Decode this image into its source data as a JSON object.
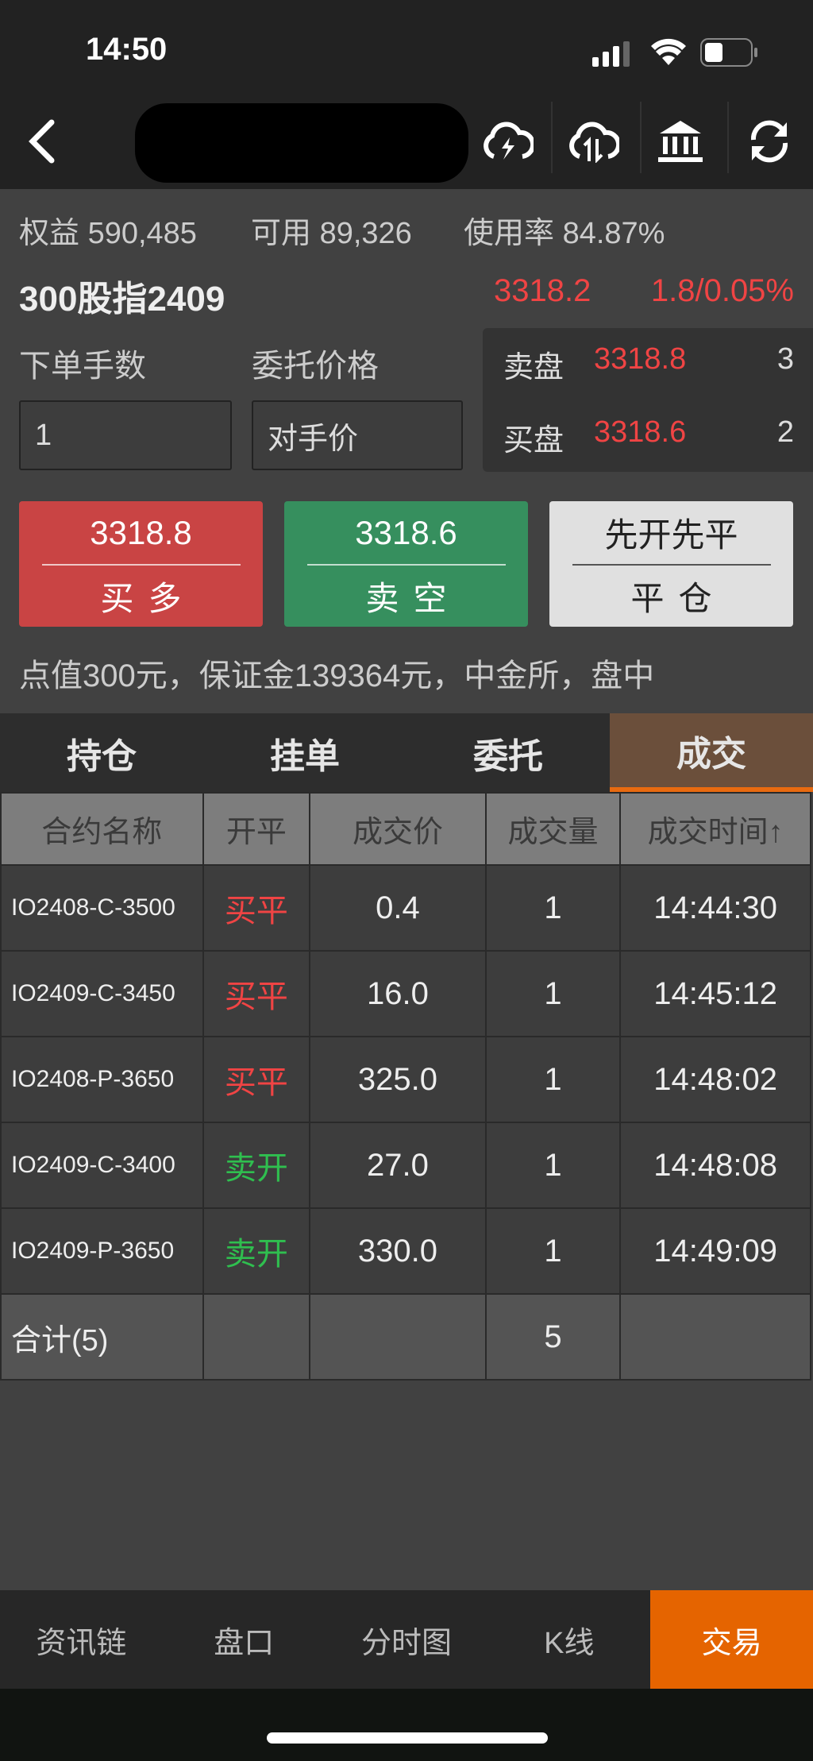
{
  "status": {
    "time": "14:50",
    "icons": [
      "signal-icon",
      "wifi-icon",
      "battery-icon"
    ]
  },
  "nav": {
    "icons": [
      "back-icon",
      "cloud-lightning-icon",
      "cloud-sync-icon",
      "bank-icon",
      "refresh-icon"
    ]
  },
  "account": {
    "equity_label": "权益",
    "equity": "590,485",
    "available_label": "可用",
    "available": "89,326",
    "usage_label": "使用率",
    "usage": "84.87%"
  },
  "contract": {
    "name": "300股指2409",
    "last": "3318.2",
    "change": "1.8/0.05%"
  },
  "order": {
    "qty_label": "下单手数",
    "qty": "1",
    "price_label": "委托价格",
    "price": "对手价"
  },
  "book": {
    "ask_label": "卖盘",
    "ask": "3318.8",
    "ask_vol": "3",
    "bid_label": "买盘",
    "bid": "3318.6",
    "bid_vol": "2"
  },
  "buttons": {
    "buy_price": "3318.8",
    "buy_label": "买多",
    "sell_price": "3318.6",
    "sell_label": "卖空",
    "close_mode": "先开先平",
    "close_label": "平仓"
  },
  "note": "点值300元，保证金139364元，中金所，盘中",
  "tabs": [
    {
      "label": "持仓"
    },
    {
      "label": "挂单"
    },
    {
      "label": "委托"
    },
    {
      "label": "成交",
      "active": true
    }
  ],
  "table": {
    "headers": [
      "合约名称",
      "开平",
      "成交价",
      "成交量",
      "成交时间↑"
    ],
    "rows": [
      {
        "name": "IO2408-C-3500",
        "side": "买平",
        "price": "0.4",
        "vol": "1",
        "time": "14:44:30"
      },
      {
        "name": "IO2409-C-3450",
        "side": "买平",
        "price": "16.0",
        "vol": "1",
        "time": "14:45:12"
      },
      {
        "name": "IO2408-P-3650",
        "side": "买平",
        "price": "325.0",
        "vol": "1",
        "time": "14:48:02"
      },
      {
        "name": "IO2409-C-3400",
        "side": "卖开",
        "price": "27.0",
        "vol": "1",
        "time": "14:48:08"
      },
      {
        "name": "IO2409-P-3650",
        "side": "卖开",
        "price": "330.0",
        "vol": "1",
        "time": "14:49:09"
      }
    ],
    "total_label": "合计(5)",
    "total_vol": "5"
  },
  "bottom_nav": [
    {
      "label": "资讯链"
    },
    {
      "label": "盘口"
    },
    {
      "label": "分时图"
    },
    {
      "label": "K线"
    },
    {
      "label": "交易",
      "active": true
    }
  ],
  "colors": {
    "up": "#f04444",
    "down": "#2fbf4f",
    "accent": "#e56400",
    "buy": "#c94444",
    "sell": "#368f5e"
  }
}
